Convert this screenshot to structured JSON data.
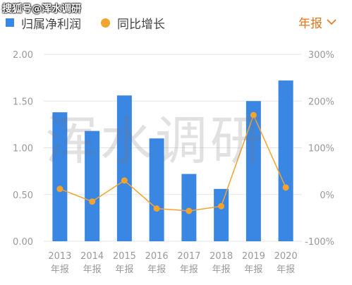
{
  "watermark_top": "搜狐号@浑水调研",
  "watermark_center": "浑水调研",
  "legend": {
    "bar_label": "归属净利润",
    "line_label": "同比增长"
  },
  "period_select": {
    "label": "年报"
  },
  "colors": {
    "bar": "#3a86e3",
    "line": "#f3a32e",
    "accent": "#e8741d",
    "axis_text": "#999999",
    "grid": "#e6e6e6"
  },
  "chart_data": {
    "type": "bar",
    "categories": [
      "2013",
      "2014",
      "2015",
      "2016",
      "2017",
      "2018",
      "2019",
      "2020"
    ],
    "category_sublabel": "年报",
    "series": [
      {
        "name": "归属净利润",
        "type": "bar",
        "axis": "left",
        "values": [
          1.38,
          1.18,
          1.56,
          1.1,
          0.72,
          0.56,
          1.5,
          1.72
        ]
      },
      {
        "name": "同比增长",
        "type": "line",
        "axis": "right",
        "values": [
          12,
          -15,
          30,
          -30,
          -35,
          -25,
          170,
          15
        ]
      }
    ],
    "y_left": {
      "min": 0,
      "max": 2,
      "ticks": [
        "0.00",
        "0.50",
        "1.00",
        "1.50",
        "2.00"
      ],
      "tick_values": [
        0,
        0.5,
        1,
        1.5,
        2
      ]
    },
    "y_right": {
      "min": -100,
      "max": 300,
      "ticks": [
        "-100%",
        "0%",
        "100%",
        "200%",
        "300%"
      ],
      "tick_values": [
        -100,
        0,
        100,
        200,
        300
      ]
    },
    "grid": true,
    "legend_position": "top-left"
  }
}
